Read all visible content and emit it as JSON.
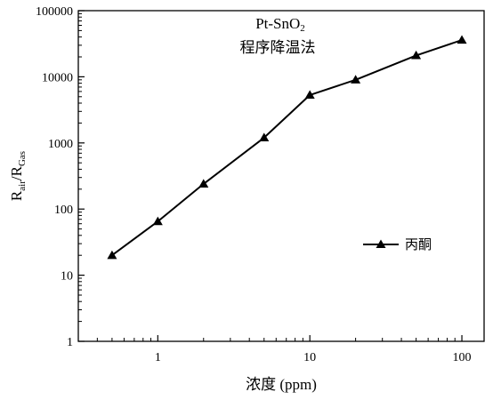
{
  "chart_data": {
    "type": "line",
    "title_line1": "Pt-SnO",
    "title_line1_sub": "2",
    "title_line2": "程序降温法",
    "xlabel": "浓度 (ppm)",
    "ylabel_main_r": "R",
    "ylabel_sub_air": "air",
    "ylabel_slash": "/R",
    "ylabel_sub_gas": "Gas",
    "xscale": "log",
    "yscale": "log",
    "xlim": [
      0.3,
      140
    ],
    "ylim": [
      1,
      100000
    ],
    "x_ticks": [
      1,
      10,
      100
    ],
    "x_tick_labels": [
      "1",
      "10",
      "100"
    ],
    "y_ticks": [
      1,
      10,
      100,
      1000,
      10000,
      100000
    ],
    "y_tick_labels": [
      "1",
      "10",
      "100",
      "1000",
      "10000",
      "100000"
    ],
    "grid": false,
    "legend_position": "right",
    "series": [
      {
        "name": "丙酮",
        "marker": "triangle",
        "color": "#000000",
        "x": [
          0.5,
          1,
          2,
          5,
          10,
          20,
          50,
          100
        ],
        "y": [
          20,
          65,
          240,
          1200,
          5300,
          9000,
          21000,
          36000
        ]
      }
    ]
  }
}
